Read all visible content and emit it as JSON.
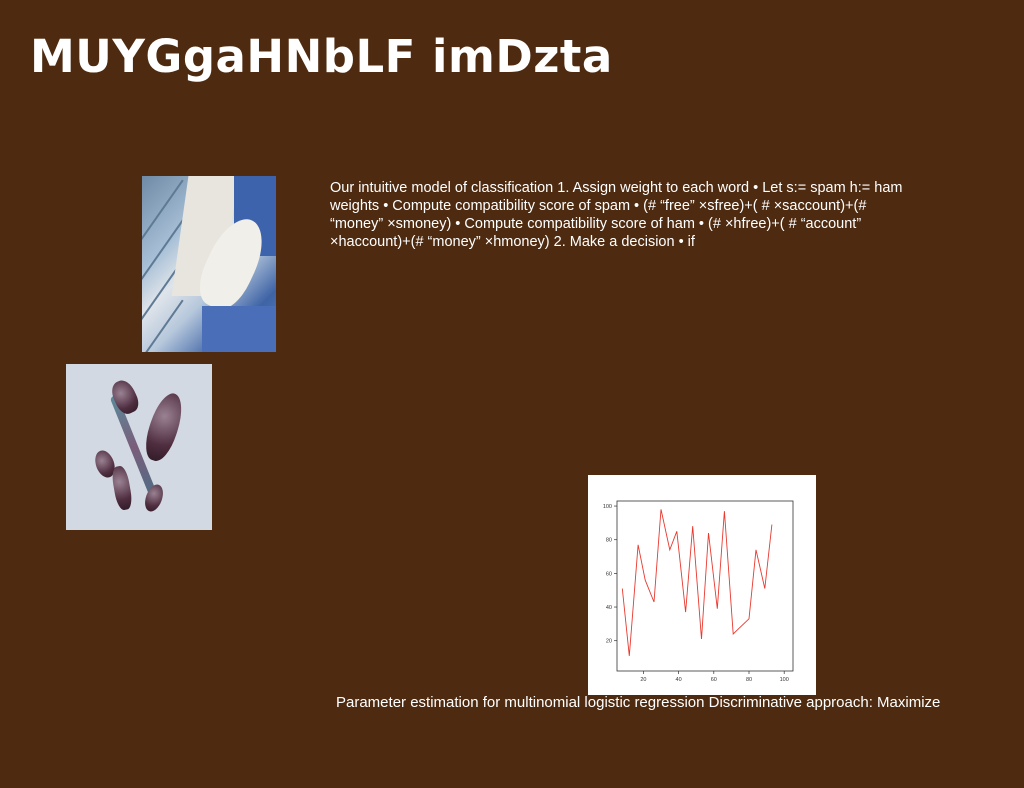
{
  "slide": {
    "title": "MUYGgaHNbLF imDzta",
    "body": "Our intuitive model of classification 1. Assign weight to each word • Let s:= spam h:= ham weights • Compute compatibility score of spam • (# “free” ×sfree)+( # ×saccount)+(# “money” ×smoney) • Compute compatibility score of ham • (# ×hfree)+( # “account” ×haccount)+(# “money” ×hmoney) 2. Make a decision • if",
    "caption": "Parameter estimation for multinomial logistic regression Discriminative approach: Maximize",
    "background_color": "#4e2b10",
    "text_color": "#ffffff"
  },
  "images": {
    "photo_1": "jeans-and-shirt-photo",
    "photo_2": "crystal-facial-roller-photo"
  },
  "chart_data": {
    "type": "line",
    "title": "",
    "xlabel": "",
    "ylabel": "",
    "xlim": [
      5,
      105
    ],
    "ylim": [
      2,
      103
    ],
    "xticks": [
      20,
      40,
      60,
      80,
      100
    ],
    "yticks": [
      20,
      40,
      60,
      80,
      100
    ],
    "grid": false,
    "series": [
      {
        "color": "#e8392f",
        "x": [
          8,
          12,
          17,
          21,
          26,
          30,
          35,
          39,
          44,
          48,
          53,
          57,
          62,
          66,
          71,
          75,
          80,
          84,
          89,
          93,
          98
        ],
        "y": [
          51,
          11,
          77,
          56,
          43,
          98,
          74,
          85,
          37,
          88,
          21,
          84,
          39,
          97,
          24,
          28,
          33,
          74,
          51,
          89,
          null
        ]
      }
    ]
  }
}
